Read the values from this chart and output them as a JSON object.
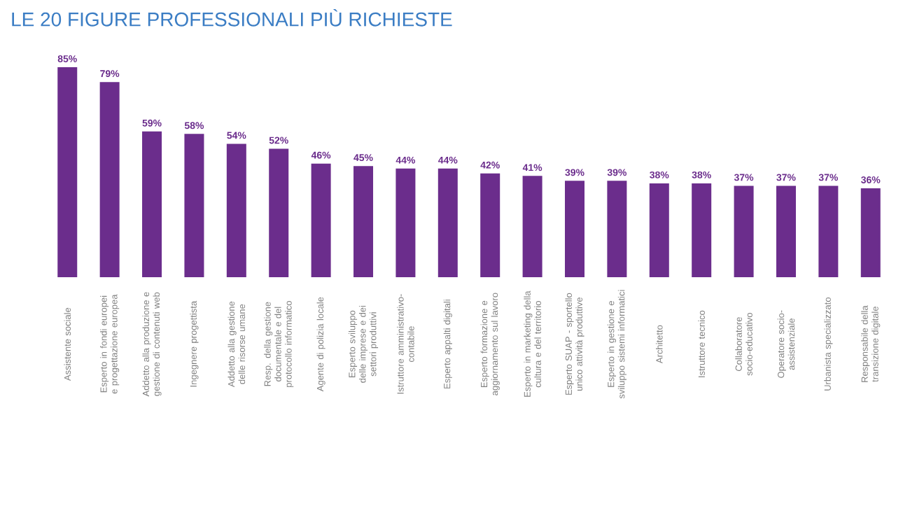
{
  "chart_data": {
    "type": "bar",
    "title": "LE 20 FIGURE PROFESSIONALI PIÙ RICHIESTE",
    "categories": [
      "Assistente sociale",
      "Esperto in fondi europei e progettazione europea",
      "Addetto alla produzione e gestione di contenuti web",
      "Ingegnere progettista",
      "Addetto alla gestione delle risorse umane",
      "Resp. della gestione documentale e del protocollo informatico",
      "Agente di polizia locale",
      "Esperto sviluppo delle imprese e dei settori produttivi",
      "Istruttore amministrativo-contabile",
      "Esperto appalti digitali",
      "Esperto formazione e aggiornamento sul lavoro",
      "Esperto in marketing della cultura e del territorio",
      "Esperto SUAP - sportello unico attività produttive",
      "Esperto in gestione e sviluppo sistemi informatici",
      "Architetto",
      "Istruttore tecnico",
      "Collaboratore socio-educativo",
      "Operatore socio-assistenziale",
      "Urbanista specializzato",
      "Responsabile della transizione digitale"
    ],
    "values": [
      85,
      79,
      59,
      58,
      54,
      52,
      46,
      45,
      44,
      44,
      42,
      41,
      39,
      39,
      38,
      38,
      37,
      37,
      37,
      36
    ],
    "value_labels": [
      "85%",
      "79%",
      "59%",
      "58%",
      "54%",
      "52%",
      "46%",
      "45%",
      "44%",
      "44%",
      "42%",
      "41%",
      "39%",
      "39%",
      "38%",
      "38%",
      "37%",
      "37%",
      "37%",
      "36%"
    ],
    "color": "#6b2d8c"
  }
}
